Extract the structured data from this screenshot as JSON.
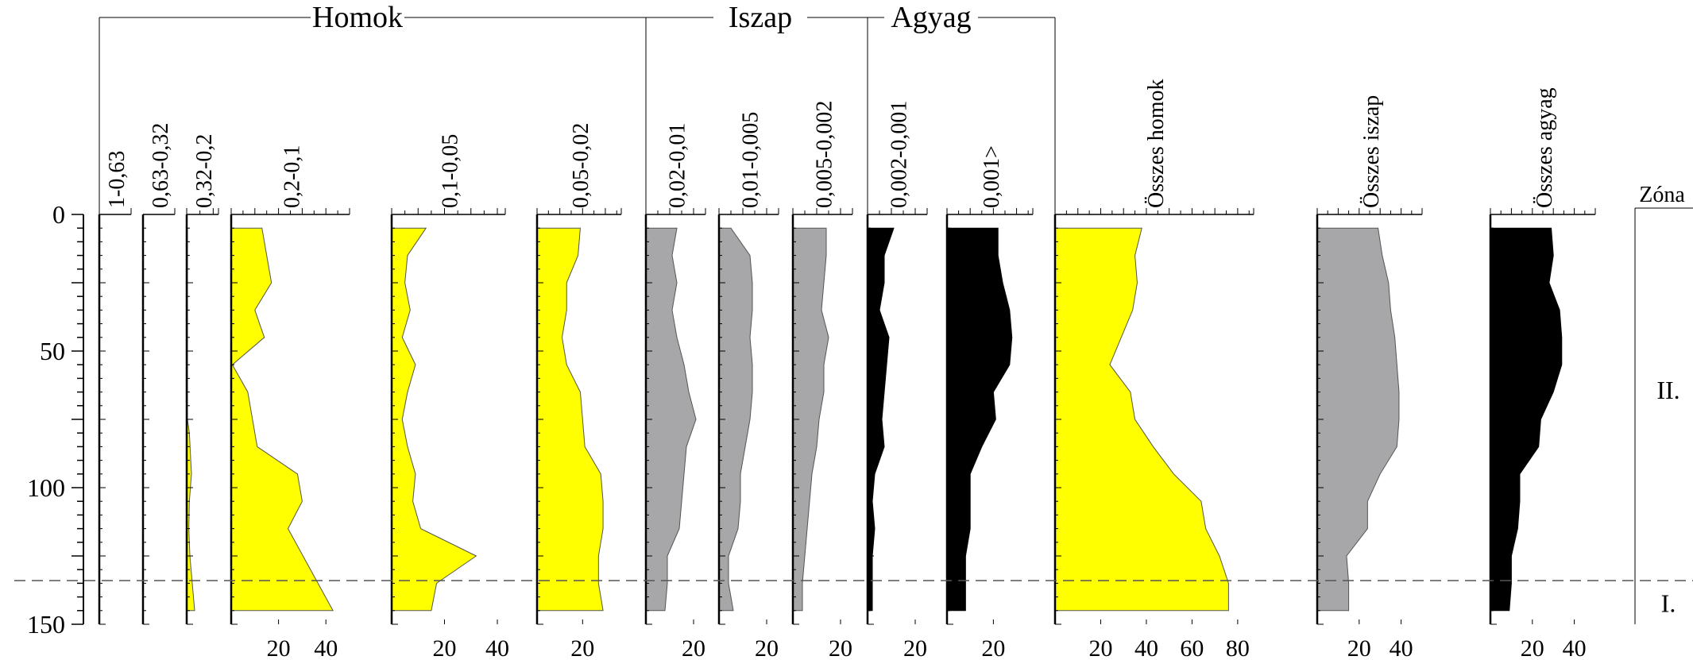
{
  "chart_data": {
    "type": "area",
    "y_axis": {
      "ticks": [
        0,
        50,
        100,
        150
      ],
      "ylim": [
        0,
        150
      ],
      "inverted": true
    },
    "group_labels": [
      "Homok",
      "Iszap",
      "Agyag"
    ],
    "zone_title": "Zóna",
    "zones": [
      {
        "label": "II.",
        "label_depth": 64
      },
      {
        "label": "I.",
        "label_depth": 142
      }
    ],
    "zone_boundary_depth": 134,
    "series": [
      {
        "name": "1-0,63",
        "color": "#ffffff",
        "xlim": [
          0,
          1
        ],
        "ticks": [],
        "depths": [
          5,
          145
        ],
        "values": [
          0,
          0
        ]
      },
      {
        "name": "0,63-0,32",
        "color": "#ffffff",
        "xlim": [
          0,
          1
        ],
        "ticks": [],
        "depths": [
          5,
          145
        ],
        "values": [
          0,
          0
        ]
      },
      {
        "name": "0,32-0,2",
        "color": "#ffff00",
        "xlim": [
          0,
          12
        ],
        "ticks": [],
        "depths": [
          5,
          75,
          80,
          95,
          105,
          115,
          125,
          145
        ],
        "values": [
          0.3,
          0.3,
          1,
          1.8,
          1,
          0.8,
          1.2,
          3
        ]
      },
      {
        "name": "0,2-0,1",
        "color": "#ffff00",
        "xlim": [
          0,
          50
        ],
        "ticks": [
          20,
          40
        ],
        "depths": [
          5,
          25,
          35,
          45,
          55,
          65,
          85,
          95,
          105,
          115,
          145
        ],
        "values": [
          13,
          17,
          10,
          14,
          0.5,
          7,
          11,
          28,
          30,
          24,
          43
        ]
      },
      {
        "name": "0,1-0,05",
        "color": "#ffff00",
        "xlim": [
          0,
          43
        ],
        "ticks": [
          20,
          40
        ],
        "depths": [
          5,
          15,
          25,
          35,
          45,
          55,
          65,
          75,
          85,
          95,
          105,
          115,
          125,
          135,
          145
        ],
        "values": [
          13,
          6,
          5,
          7,
          4,
          9,
          6,
          4,
          6,
          9,
          8,
          11,
          32,
          17,
          15
        ]
      },
      {
        "name": "0,05-0,02",
        "color": "#ffff00",
        "xlim": [
          0,
          37
        ],
        "ticks": [
          20
        ],
        "depths": [
          5,
          15,
          25,
          35,
          45,
          55,
          65,
          75,
          85,
          95,
          105,
          115,
          125,
          135,
          145
        ],
        "values": [
          19,
          18,
          13,
          13,
          11,
          13,
          19,
          20,
          21,
          28,
          29,
          29,
          27,
          27,
          29
        ]
      },
      {
        "name": "0,02-0,01",
        "color": "#a7a7a9",
        "xlim": [
          0,
          25
        ],
        "ticks": [
          20
        ],
        "depths": [
          5,
          15,
          25,
          35,
          45,
          55,
          65,
          75,
          85,
          95,
          105,
          115,
          125,
          135,
          145
        ],
        "values": [
          13,
          11,
          13,
          11,
          13,
          16,
          18,
          21,
          17,
          16,
          15,
          14,
          9,
          9,
          8
        ]
      },
      {
        "name": "0,01-0,005",
        "color": "#a7a7a9",
        "xlim": [
          0,
          25
        ],
        "ticks": [
          20
        ],
        "depths": [
          5,
          15,
          25,
          35,
          45,
          55,
          65,
          75,
          85,
          95,
          105,
          115,
          125,
          135,
          145
        ],
        "values": [
          5,
          13,
          14,
          14,
          13,
          14,
          14,
          13,
          11,
          9,
          9,
          8,
          4,
          4,
          6
        ]
      },
      {
        "name": "0,005-0,002",
        "color": "#a7a7a9",
        "xlim": [
          0,
          25
        ],
        "ticks": [
          20
        ],
        "depths": [
          5,
          15,
          25,
          35,
          45,
          55,
          65,
          75,
          85,
          95,
          105,
          115,
          125,
          135,
          145
        ],
        "values": [
          14,
          14,
          13,
          12,
          15,
          13,
          13,
          11,
          10,
          8,
          7,
          6,
          5,
          4,
          4
        ]
      },
      {
        "name": "0,002-0,001",
        "color": "#000000",
        "xlim": [
          0,
          25
        ],
        "ticks": [
          20
        ],
        "depths": [
          5,
          15,
          25,
          35,
          45,
          55,
          65,
          75,
          85,
          95,
          105,
          115,
          125,
          135,
          145
        ],
        "values": [
          11,
          7,
          7,
          5,
          9,
          8,
          7,
          6,
          7,
          3,
          2,
          3,
          2,
          2,
          2
        ]
      },
      {
        "name": "0,001>",
        "color": "#000000",
        "xlim": [
          0,
          37
        ],
        "ticks": [
          20
        ],
        "depths": [
          5,
          15,
          25,
          35,
          45,
          55,
          65,
          75,
          85,
          95,
          105,
          115,
          125,
          135,
          145
        ],
        "values": [
          22,
          22,
          24,
          27,
          28,
          27,
          20,
          21,
          15,
          10,
          10,
          10,
          8,
          8,
          8
        ]
      },
      {
        "name": "Összes homok",
        "color": "#ffff00",
        "xlim": [
          0,
          87
        ],
        "ticks": [
          20,
          40,
          60,
          80
        ],
        "depths": [
          5,
          15,
          25,
          35,
          45,
          55,
          65,
          75,
          85,
          95,
          105,
          115,
          125,
          135,
          145
        ],
        "values": [
          38,
          35,
          36,
          34,
          29,
          24,
          33,
          35,
          43,
          52,
          64,
          66,
          72,
          76,
          76
        ]
      },
      {
        "name": "Összes iszap",
        "color": "#a7a7a9",
        "xlim": [
          0,
          50
        ],
        "ticks": [
          20,
          40
        ],
        "depths": [
          5,
          15,
          25,
          35,
          45,
          55,
          65,
          75,
          85,
          95,
          105,
          115,
          125,
          135,
          145
        ],
        "values": [
          29,
          31,
          34,
          35,
          37,
          38,
          39,
          39,
          38,
          30,
          24,
          24,
          14,
          15,
          15
        ]
      },
      {
        "name": "Összes agyag",
        "color": "#000000",
        "xlim": [
          0,
          50
        ],
        "ticks": [
          20,
          40
        ],
        "depths": [
          5,
          15,
          25,
          35,
          45,
          55,
          65,
          75,
          85,
          95,
          105,
          115,
          125,
          135,
          145
        ],
        "values": [
          29,
          30,
          28,
          33,
          34,
          34,
          30,
          24,
          23,
          14,
          14,
          13,
          10,
          10,
          9
        ]
      }
    ]
  }
}
